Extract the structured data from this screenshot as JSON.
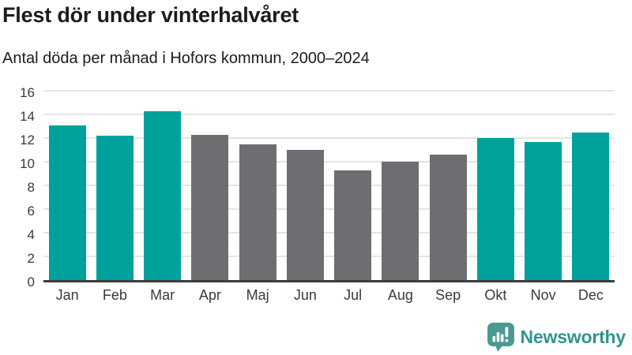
{
  "header": {
    "title": "Flest dör under vinterhalvåret",
    "subtitle": "Antal döda per månad i Hofors kommun, 2000–2024"
  },
  "chart_data": {
    "type": "bar",
    "title": "Flest dör under vinterhalvåret",
    "subtitle": "Antal döda per månad i Hofors kommun, 2000–2024",
    "categories": [
      "Jan",
      "Feb",
      "Mar",
      "Apr",
      "Maj",
      "Jun",
      "Jul",
      "Aug",
      "Sep",
      "Okt",
      "Nov",
      "Dec"
    ],
    "values": [
      13.1,
      12.2,
      14.3,
      12.3,
      11.5,
      11.0,
      9.3,
      10.0,
      10.6,
      12.0,
      11.7,
      12.5
    ],
    "bar_color_keys": [
      "teal",
      "teal",
      "teal",
      "gray",
      "gray",
      "gray",
      "gray",
      "gray",
      "gray",
      "teal",
      "teal",
      "teal"
    ],
    "colors": {
      "teal": "#00a19a",
      "gray": "#6d6d72"
    },
    "xlabel": "",
    "ylabel": "",
    "ylim": [
      0,
      16
    ],
    "yticks": [
      0,
      2,
      4,
      6,
      8,
      10,
      12,
      14,
      16
    ],
    "grid": true,
    "legend_position": "none"
  },
  "footer": {
    "brand": "Newsworthy",
    "brand_color": "#2f968e",
    "logo_icon": "bar-chart-speech-bubble-icon"
  }
}
